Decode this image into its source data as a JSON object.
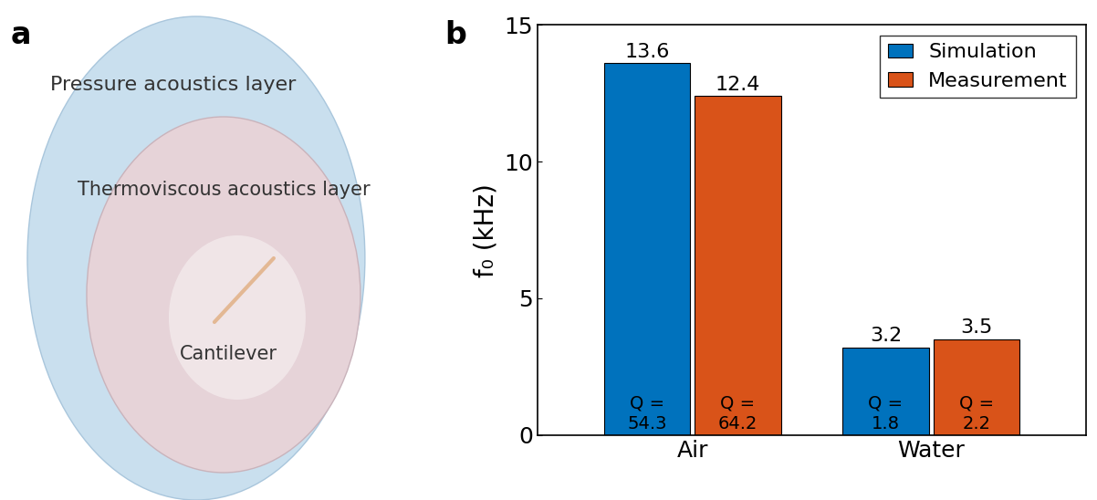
{
  "panel_labels": [
    "a",
    "b"
  ],
  "diagram": {
    "outer_layer": "Pressure acoustics layer",
    "inner_layer": "Thermoviscous acoustics layer",
    "object": "Cantilever"
  },
  "chart_data": {
    "type": "bar",
    "categories": [
      "Air",
      "Water"
    ],
    "y_label": "f₀ (kHz)",
    "ylim": [
      0,
      15
    ],
    "yticks": [
      0,
      5,
      10,
      15
    ],
    "data_labels": true,
    "legend": "upper right",
    "q_label": "Q =",
    "series": [
      {
        "name": "Simulation",
        "color": "#0072BD",
        "values": [
          13.6,
          3.2
        ],
        "q_values": [
          54.3,
          1.8
        ]
      },
      {
        "name": "Measurement",
        "color": "#D95319",
        "values": [
          12.4,
          3.5
        ],
        "q_values": [
          64.2,
          2.2
        ]
      }
    ]
  }
}
